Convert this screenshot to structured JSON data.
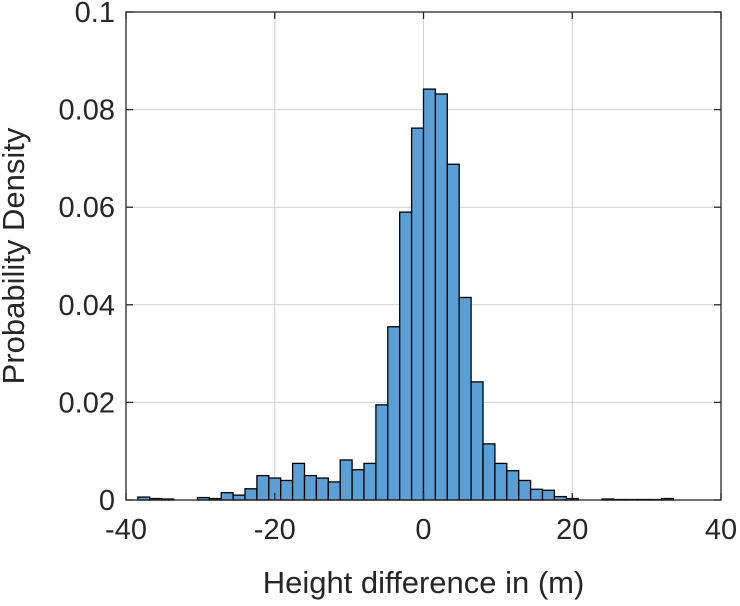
{
  "chart_data": {
    "type": "bar",
    "subtype": "histogram",
    "title": "",
    "xlabel": "Height difference in (m)",
    "ylabel": "Probability Density",
    "xlim": [
      -40,
      40
    ],
    "ylim": [
      0,
      0.1
    ],
    "xticks": [
      -40,
      -20,
      0,
      20,
      40
    ],
    "yticks": [
      0,
      0.02,
      0.04,
      0.06,
      0.08,
      0.1
    ],
    "xtick_labels": [
      "-40",
      "-20",
      "0",
      "20",
      "40"
    ],
    "ytick_labels": [
      "0",
      "0.02",
      "0.04",
      "0.06",
      "0.08",
      "0.1"
    ],
    "grid": true,
    "bin_width": 1.6,
    "bin_start": -38.4,
    "values": [
      0.0006,
      0.0003,
      0.0002,
      0,
      0,
      0.0005,
      0.0003,
      0.0015,
      0.001,
      0.0023,
      0.005,
      0.0045,
      0.004,
      0.0075,
      0.005,
      0.0045,
      0.0037,
      0.0082,
      0.0062,
      0.0075,
      0.0195,
      0.0355,
      0.059,
      0.0762,
      0.0842,
      0.0832,
      0.0688,
      0.0415,
      0.0242,
      0.0115,
      0.0075,
      0.006,
      0.004,
      0.0022,
      0.002,
      0.0007,
      0.0003,
      0,
      0,
      0.0002,
      0.0001,
      0.0001,
      0.0001,
      0.0001,
      0.0003
    ],
    "bar_color": "#5aa0d6",
    "edge_color": "#000000"
  }
}
